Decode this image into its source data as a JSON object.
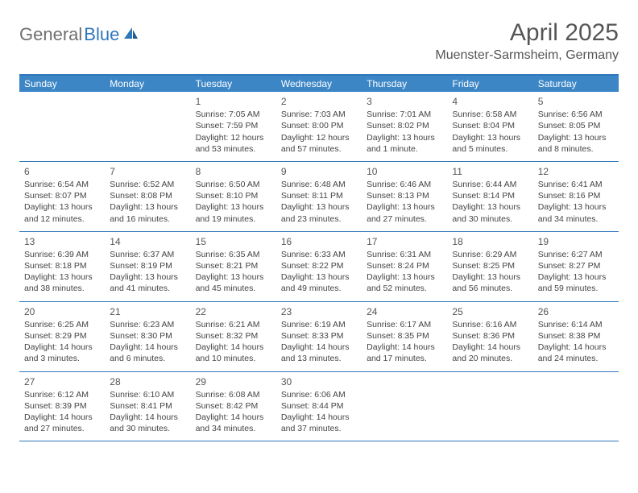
{
  "brand": {
    "part1": "General",
    "part2": "Blue"
  },
  "title": "April 2025",
  "location": "Muenster-Sarmsheim, Germany",
  "colors": {
    "header_bar": "#3d86c6",
    "border": "#2f77bb",
    "logo_gray": "#6f6f6f",
    "logo_blue": "#2f77bb",
    "text": "#444444",
    "background": "#ffffff"
  },
  "weekdays": [
    "Sunday",
    "Monday",
    "Tuesday",
    "Wednesday",
    "Thursday",
    "Friday",
    "Saturday"
  ],
  "weeks": [
    [
      {
        "empty": true
      },
      {
        "empty": true
      },
      {
        "n": "1",
        "sr": "Sunrise: 7:05 AM",
        "ss": "Sunset: 7:59 PM",
        "dl": "Daylight: 12 hours and 53 minutes."
      },
      {
        "n": "2",
        "sr": "Sunrise: 7:03 AM",
        "ss": "Sunset: 8:00 PM",
        "dl": "Daylight: 12 hours and 57 minutes."
      },
      {
        "n": "3",
        "sr": "Sunrise: 7:01 AM",
        "ss": "Sunset: 8:02 PM",
        "dl": "Daylight: 13 hours and 1 minute."
      },
      {
        "n": "4",
        "sr": "Sunrise: 6:58 AM",
        "ss": "Sunset: 8:04 PM",
        "dl": "Daylight: 13 hours and 5 minutes."
      },
      {
        "n": "5",
        "sr": "Sunrise: 6:56 AM",
        "ss": "Sunset: 8:05 PM",
        "dl": "Daylight: 13 hours and 8 minutes."
      }
    ],
    [
      {
        "n": "6",
        "sr": "Sunrise: 6:54 AM",
        "ss": "Sunset: 8:07 PM",
        "dl": "Daylight: 13 hours and 12 minutes."
      },
      {
        "n": "7",
        "sr": "Sunrise: 6:52 AM",
        "ss": "Sunset: 8:08 PM",
        "dl": "Daylight: 13 hours and 16 minutes."
      },
      {
        "n": "8",
        "sr": "Sunrise: 6:50 AM",
        "ss": "Sunset: 8:10 PM",
        "dl": "Daylight: 13 hours and 19 minutes."
      },
      {
        "n": "9",
        "sr": "Sunrise: 6:48 AM",
        "ss": "Sunset: 8:11 PM",
        "dl": "Daylight: 13 hours and 23 minutes."
      },
      {
        "n": "10",
        "sr": "Sunrise: 6:46 AM",
        "ss": "Sunset: 8:13 PM",
        "dl": "Daylight: 13 hours and 27 minutes."
      },
      {
        "n": "11",
        "sr": "Sunrise: 6:44 AM",
        "ss": "Sunset: 8:14 PM",
        "dl": "Daylight: 13 hours and 30 minutes."
      },
      {
        "n": "12",
        "sr": "Sunrise: 6:41 AM",
        "ss": "Sunset: 8:16 PM",
        "dl": "Daylight: 13 hours and 34 minutes."
      }
    ],
    [
      {
        "n": "13",
        "sr": "Sunrise: 6:39 AM",
        "ss": "Sunset: 8:18 PM",
        "dl": "Daylight: 13 hours and 38 minutes."
      },
      {
        "n": "14",
        "sr": "Sunrise: 6:37 AM",
        "ss": "Sunset: 8:19 PM",
        "dl": "Daylight: 13 hours and 41 minutes."
      },
      {
        "n": "15",
        "sr": "Sunrise: 6:35 AM",
        "ss": "Sunset: 8:21 PM",
        "dl": "Daylight: 13 hours and 45 minutes."
      },
      {
        "n": "16",
        "sr": "Sunrise: 6:33 AM",
        "ss": "Sunset: 8:22 PM",
        "dl": "Daylight: 13 hours and 49 minutes."
      },
      {
        "n": "17",
        "sr": "Sunrise: 6:31 AM",
        "ss": "Sunset: 8:24 PM",
        "dl": "Daylight: 13 hours and 52 minutes."
      },
      {
        "n": "18",
        "sr": "Sunrise: 6:29 AM",
        "ss": "Sunset: 8:25 PM",
        "dl": "Daylight: 13 hours and 56 minutes."
      },
      {
        "n": "19",
        "sr": "Sunrise: 6:27 AM",
        "ss": "Sunset: 8:27 PM",
        "dl": "Daylight: 13 hours and 59 minutes."
      }
    ],
    [
      {
        "n": "20",
        "sr": "Sunrise: 6:25 AM",
        "ss": "Sunset: 8:29 PM",
        "dl": "Daylight: 14 hours and 3 minutes."
      },
      {
        "n": "21",
        "sr": "Sunrise: 6:23 AM",
        "ss": "Sunset: 8:30 PM",
        "dl": "Daylight: 14 hours and 6 minutes."
      },
      {
        "n": "22",
        "sr": "Sunrise: 6:21 AM",
        "ss": "Sunset: 8:32 PM",
        "dl": "Daylight: 14 hours and 10 minutes."
      },
      {
        "n": "23",
        "sr": "Sunrise: 6:19 AM",
        "ss": "Sunset: 8:33 PM",
        "dl": "Daylight: 14 hours and 13 minutes."
      },
      {
        "n": "24",
        "sr": "Sunrise: 6:17 AM",
        "ss": "Sunset: 8:35 PM",
        "dl": "Daylight: 14 hours and 17 minutes."
      },
      {
        "n": "25",
        "sr": "Sunrise: 6:16 AM",
        "ss": "Sunset: 8:36 PM",
        "dl": "Daylight: 14 hours and 20 minutes."
      },
      {
        "n": "26",
        "sr": "Sunrise: 6:14 AM",
        "ss": "Sunset: 8:38 PM",
        "dl": "Daylight: 14 hours and 24 minutes."
      }
    ],
    [
      {
        "n": "27",
        "sr": "Sunrise: 6:12 AM",
        "ss": "Sunset: 8:39 PM",
        "dl": "Daylight: 14 hours and 27 minutes."
      },
      {
        "n": "28",
        "sr": "Sunrise: 6:10 AM",
        "ss": "Sunset: 8:41 PM",
        "dl": "Daylight: 14 hours and 30 minutes."
      },
      {
        "n": "29",
        "sr": "Sunrise: 6:08 AM",
        "ss": "Sunset: 8:42 PM",
        "dl": "Daylight: 14 hours and 34 minutes."
      },
      {
        "n": "30",
        "sr": "Sunrise: 6:06 AM",
        "ss": "Sunset: 8:44 PM",
        "dl": "Daylight: 14 hours and 37 minutes."
      },
      {
        "empty": true
      },
      {
        "empty": true
      },
      {
        "empty": true
      }
    ]
  ]
}
